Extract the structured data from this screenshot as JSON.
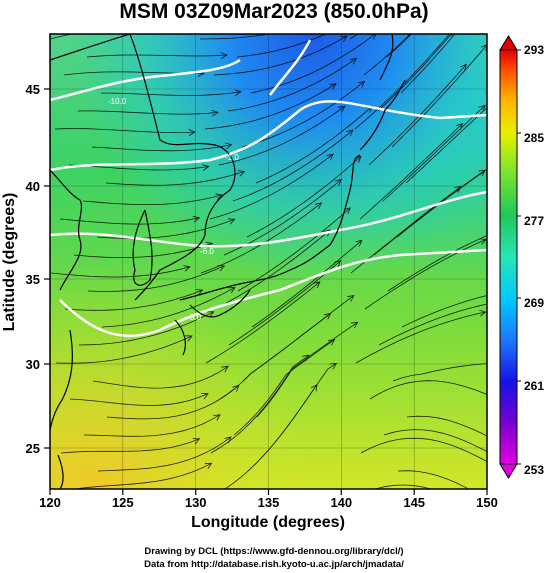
{
  "title": "MSM 03Z09Mar2023 (850.0hPa)",
  "x_axis": {
    "label": "Longitude (degrees)",
    "ticks": [
      "120",
      "125",
      "130",
      "135",
      "140",
      "145",
      "150"
    ]
  },
  "y_axis": {
    "label": "Latitude  (degrees)",
    "ticks": [
      "25",
      "30",
      "35",
      "40",
      "45"
    ]
  },
  "colorbar": {
    "ticks": [
      "253",
      "261",
      "269",
      "277",
      "285",
      "293"
    ],
    "min": 253,
    "max": 293,
    "colors": [
      "#e200e2",
      "#5500c8",
      "#1414e6",
      "#1e78ff",
      "#00c8ff",
      "#28e6b4",
      "#1ec85a",
      "#8ce628",
      "#e6f000",
      "#ffb400",
      "#ff5000",
      "#e60000"
    ]
  },
  "contour_labels": [
    "-10.0",
    "-1.0",
    "-6.0",
    "0.0"
  ],
  "credits": {
    "line1": "Drawing by DCL (https://www.gfd-dennou.org/library/dcl/)",
    "line2": "Data from http://database.rish.kyoto-u.ac.jp/arch/jmadata/"
  },
  "colors": {
    "cold": "#1e6ee6",
    "cool": "#28d2b4",
    "mild": "#32d250",
    "warm": "#d2e628",
    "warmest": "#f0c828"
  }
}
